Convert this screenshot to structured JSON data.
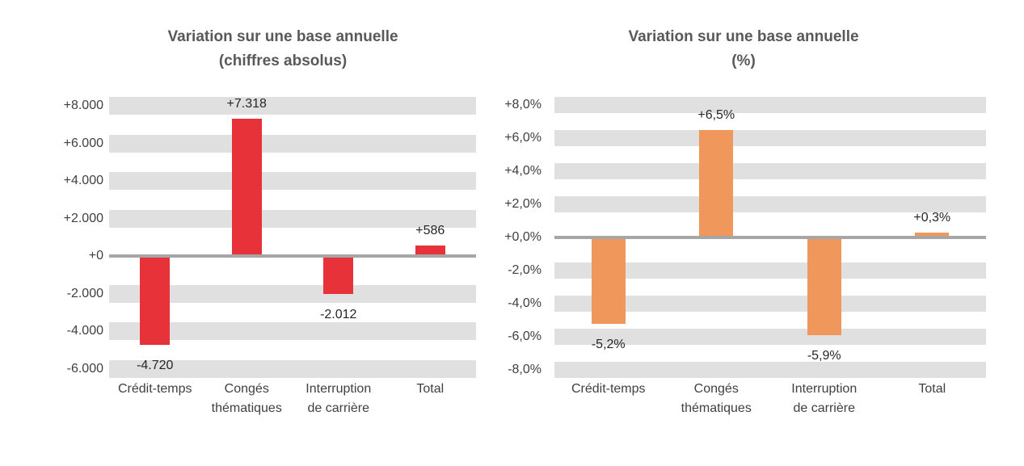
{
  "figure": {
    "background": "#ffffff"
  },
  "colors": {
    "band": "#e0e0e0",
    "zero_line": "#a6a6a6",
    "title_text": "#595959",
    "axis_text": "#404040",
    "data_label_text": "#262626",
    "red_bar": "#e7323a",
    "orange_bar": "#f0975c"
  },
  "chart_data": [
    {
      "type": "bar",
      "title": "Variation sur une base annuelle\n(chiffres absolus)",
      "categories": [
        "Crédit-temps",
        "Congés\nthématiques",
        "Interruption\nde carrière",
        "Total"
      ],
      "values": [
        -4720,
        7318,
        -2012,
        586
      ],
      "data_labels": [
        "-4.720",
        "+7.318",
        "-2.012",
        "+586"
      ],
      "bar_color": "#e7323a",
      "ylim": [
        -6000,
        8000
      ],
      "ytick_step": 2000,
      "ytick_labels_top_to_bottom": [
        "+8.000",
        "+6.000",
        "+4.000",
        "+2.000",
        "+0",
        "-2.000",
        "-4.000",
        "-6.000"
      ],
      "grid": "thick-band",
      "legend": "none",
      "xlabel": "",
      "ylabel": ""
    },
    {
      "type": "bar",
      "title": "Variation sur une base annuelle\n(%)",
      "categories": [
        "Crédit-temps",
        "Congés\nthématiques",
        "Interruption\nde carrière",
        "Total"
      ],
      "values": [
        -5.2,
        6.5,
        -5.9,
        0.3
      ],
      "data_labels": [
        "-5,2%",
        "+6,5%",
        "-5,9%",
        "+0,3%"
      ],
      "bar_color": "#f0975c",
      "ylim": [
        -8,
        8
      ],
      "ytick_step": 2,
      "ytick_labels_top_to_bottom": [
        "+8,0%",
        "+6,0%",
        "+4,0%",
        "+2,0%",
        "+0,0%",
        "-2,0%",
        "-4,0%",
        "-6,0%",
        "-8,0%"
      ],
      "grid": "thick-band",
      "legend": "none",
      "xlabel": "",
      "ylabel": ""
    }
  ]
}
